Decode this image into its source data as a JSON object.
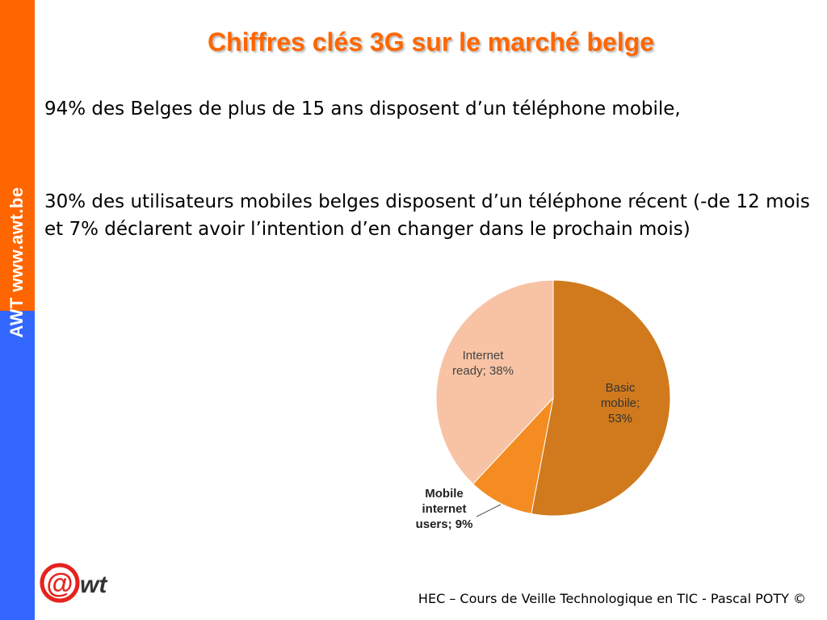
{
  "colors": {
    "sidebar_top": "#FF6600",
    "sidebar_bottom": "#3366FF",
    "title": "#FF6600",
    "pie_basic": "#D07A1D",
    "pie_mobile_internet": "#F48C22",
    "pie_internet_ready": "#F8C3A5",
    "logo_red": "#E5231E"
  },
  "sidebar": {
    "text": "AWT www.awt.be"
  },
  "slide": {
    "title": "Chiffres clés 3G sur le marché belge",
    "paragraphs": [
      "94% des Belges de plus de 15 ans disposent d’un téléphone mobile,",
      "30% des utilisateurs mobiles belges disposent d’un téléphone récent (-de 12 mois et 7% déclarent avoir l’intention d’en changer dans le prochain mois)"
    ]
  },
  "logo": {
    "at_symbol": "@",
    "wordmark": "wt",
    "icon": "awt-logo"
  },
  "footer": {
    "text": "HEC – Cours de Veille Technologique en TIC - Pascal POTY ©"
  },
  "chart_data": {
    "type": "pie",
    "title": "",
    "legend": "none",
    "slices": [
      {
        "label": "Basic mobile; 53%",
        "lines": [
          "Basic",
          "mobile;",
          "53%"
        ],
        "value": 53
      },
      {
        "label": "Mobile internet users; 9%",
        "lines": [
          "Mobile",
          "internet",
          "users; 9%"
        ],
        "value": 9
      },
      {
        "label": "Internet ready; 38%",
        "lines": [
          "Internet",
          "ready; 38%"
        ],
        "value": 38
      }
    ]
  }
}
